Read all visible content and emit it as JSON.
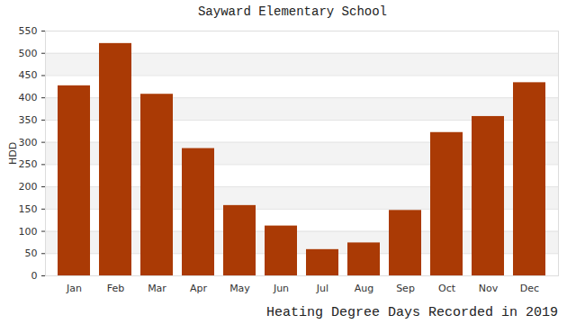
{
  "chart_data": {
    "type": "bar",
    "title": "Sayward Elementary School",
    "caption": "Heating Degree Days Recorded in 2019",
    "y_label": "HDD",
    "categories": [
      "Jan",
      "Feb",
      "Mar",
      "Apr",
      "May",
      "Jun",
      "Jul",
      "Aug",
      "Sep",
      "Oct",
      "Nov",
      "Dec"
    ],
    "values": [
      427,
      522,
      408,
      286,
      158,
      112,
      59,
      74,
      147,
      322,
      358,
      434
    ],
    "color": "#aa3a05",
    "ylim": [
      0,
      550
    ],
    "yticks": [
      0,
      50,
      100,
      150,
      200,
      250,
      300,
      350,
      400,
      450,
      500,
      550
    ],
    "grid": true
  }
}
